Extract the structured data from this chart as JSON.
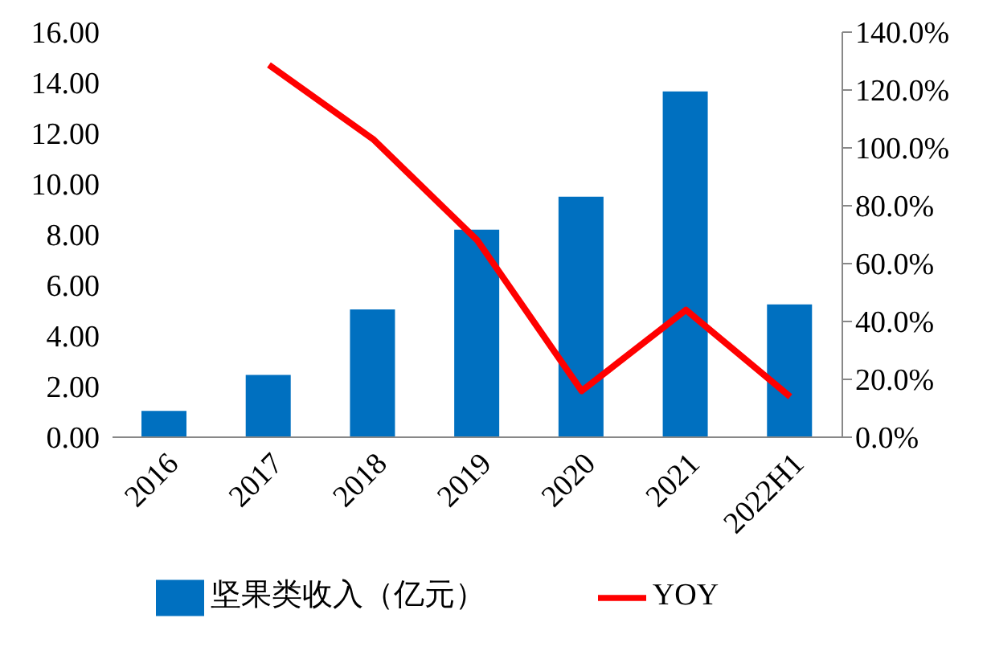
{
  "chart_data": {
    "type": "bar",
    "categories": [
      "2016",
      "2017",
      "2018",
      "2019",
      "2020",
      "2021",
      "2022H1"
    ],
    "series": [
      {
        "name": "坚果类收入（亿元）",
        "color": "#0070c0",
        "values": [
          1.04,
          2.46,
          5.05,
          8.2,
          9.5,
          13.66,
          5.25
        ]
      },
      {
        "name": "YOY",
        "type": "line",
        "axis": "y2",
        "color": "#ff0000",
        "values": [
          null,
          128.7,
          103,
          68,
          16,
          44,
          14
        ]
      }
    ],
    "ylim": [
      0,
      16
    ],
    "yticks": [
      {
        "value": 0,
        "label": "0.00"
      },
      {
        "value": 2,
        "label": "2.00"
      },
      {
        "value": 4,
        "label": "4.00"
      },
      {
        "value": 6,
        "label": "6.00"
      },
      {
        "value": 8,
        "label": "8.00"
      },
      {
        "value": 10,
        "label": "10.00"
      },
      {
        "value": 12,
        "label": "12.00"
      },
      {
        "value": 14,
        "label": "14.00"
      },
      {
        "value": 16,
        "label": "16.00"
      }
    ],
    "y2lim": [
      0,
      140
    ],
    "y2ticks": [
      {
        "value": 0,
        "label": "0.0%"
      },
      {
        "value": 20,
        "label": "20.0%"
      },
      {
        "value": 40,
        "label": "40.0%"
      },
      {
        "value": 60,
        "label": "60.0%"
      },
      {
        "value": 80,
        "label": "80.0%"
      },
      {
        "value": 100,
        "label": "100.0%"
      },
      {
        "value": 120,
        "label": "120.0%"
      },
      {
        "value": 140,
        "label": "140.0%"
      }
    ],
    "legend": "bottom",
    "grid": false,
    "marker": "none",
    "line_style": "solid"
  }
}
